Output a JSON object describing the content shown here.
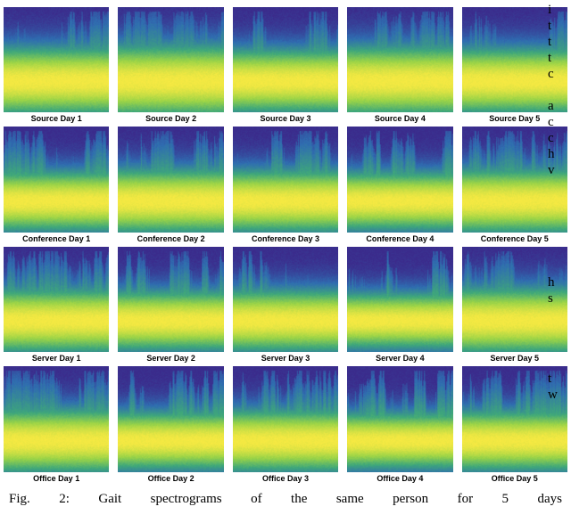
{
  "figure": {
    "colormap": {
      "low": "#3b2b8c",
      "mid1": "#2f6db1",
      "mid2": "#3fa87a",
      "mid3": "#9bd447",
      "high": "#f5e942"
    },
    "rows": [
      {
        "name": "Source",
        "labels": [
          "Source Day 1",
          "Source Day 2",
          "Source Day 3",
          "Source Day 4",
          "Source Day 5"
        ]
      },
      {
        "name": "Conference",
        "labels": [
          "Conference Day 1",
          "Conference Day 2",
          "Conference Day 3",
          "Conference Day 4",
          "Conference Day 5"
        ]
      },
      {
        "name": "Server",
        "labels": [
          "Server Day 1",
          "Server Day 2",
          "Server Day 3",
          "Server Day 4",
          "Server Day 5"
        ]
      },
      {
        "name": "Office",
        "labels": [
          "Office Day 1",
          "Office Day 2",
          "Office Day 3",
          "Office Day 4",
          "Office Day 5"
        ]
      }
    ],
    "specParams": [
      [
        {
          "band": 0.32,
          "rough": 0.55
        },
        {
          "band": 0.34,
          "rough": 0.5
        },
        {
          "band": 0.3,
          "rough": 0.58
        },
        {
          "band": 0.33,
          "rough": 0.52
        },
        {
          "band": 0.31,
          "rough": 0.56
        }
      ],
      [
        {
          "band": 0.28,
          "rough": 0.62
        },
        {
          "band": 0.3,
          "rough": 0.6
        },
        {
          "band": 0.29,
          "rough": 0.64
        },
        {
          "band": 0.27,
          "rough": 0.66
        },
        {
          "band": 0.3,
          "rough": 0.6
        }
      ],
      [
        {
          "band": 0.3,
          "rough": 0.58
        },
        {
          "band": 0.28,
          "rough": 0.62
        },
        {
          "band": 0.29,
          "rough": 0.6
        },
        {
          "band": 0.26,
          "rough": 0.68
        },
        {
          "band": 0.31,
          "rough": 0.56
        }
      ],
      [
        {
          "band": 0.3,
          "rough": 0.6
        },
        {
          "band": 0.27,
          "rough": 0.66
        },
        {
          "band": 0.29,
          "rough": 0.62
        },
        {
          "band": 0.26,
          "rough": 0.68
        },
        {
          "band": 0.28,
          "rough": 0.64
        }
      ]
    ],
    "label_fontsize": 9,
    "label_fontweight": "bold",
    "caption": "Fig. 2: Gait spectrograms of the same person for 5 days"
  },
  "sideFragments": [
    "i",
    "t",
    "t",
    "t",
    "c",
    "",
    "a",
    "c",
    "c",
    "h",
    "v",
    "",
    "",
    "",
    "",
    "",
    "",
    "h",
    "s",
    "",
    "",
    "",
    "",
    "t",
    "w"
  ]
}
